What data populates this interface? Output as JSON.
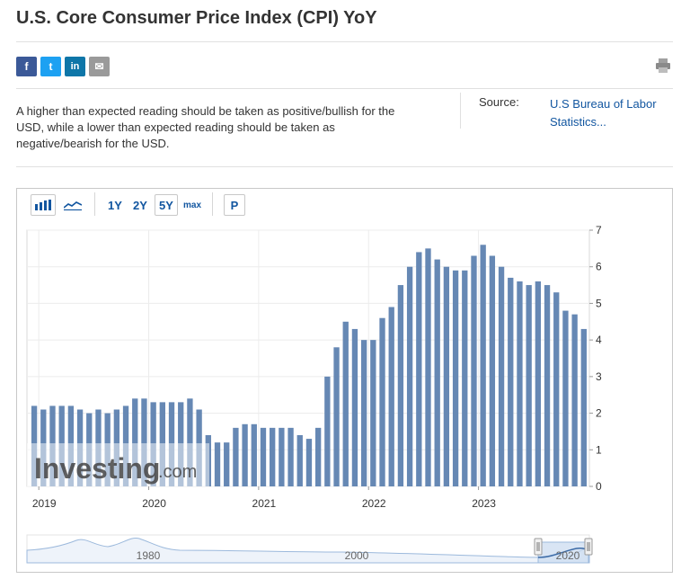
{
  "page": {
    "title": "U.S. Core Consumer Price Index (CPI) YoY",
    "description": "A higher than expected reading should be taken as positive/bullish for the USD, while a lower than expected reading should be taken as negative/bearish for the USD.",
    "source_label": "Source:",
    "source_link": "U.S Bureau of Labor Statistics..."
  },
  "share": {
    "facebook": "f",
    "twitter": "t",
    "linkedin": "in",
    "email": "✉",
    "icons": [
      "facebook-icon",
      "twitter-icon",
      "linkedin-icon",
      "email-icon",
      "printer-icon"
    ]
  },
  "toolbar": {
    "ranges": [
      "1Y",
      "2Y",
      "5Y",
      "max"
    ],
    "selected_range": "5Y",
    "p_label": "P",
    "icons": [
      "bar-chart-icon",
      "area-chart-icon"
    ]
  },
  "colors": {
    "bar": "#6688b4",
    "bar_shade": "#5b7fae",
    "link": "#1256a0",
    "watermark": "#444444",
    "navigator_line": "#9cb9dc",
    "navigator_fill": "#eef3fa"
  },
  "watermark": {
    "brand": "Investing",
    "suffix": ".com"
  },
  "chart_data": {
    "type": "bar",
    "title": "",
    "xlabel": "",
    "ylabel": "",
    "ylim": [
      0,
      7
    ],
    "yticks": [
      0,
      1,
      2,
      3,
      4,
      5,
      6,
      7
    ],
    "y_axis_position": "right",
    "grid": true,
    "x_tick_labels": [
      "2019",
      "2020",
      "2021",
      "2022",
      "2023"
    ],
    "x_tick_label_month_index": [
      1,
      13,
      25,
      37,
      49
    ],
    "start_month": "2018-11",
    "values": [
      2.2,
      2.1,
      2.2,
      2.2,
      2.2,
      2.1,
      2.0,
      2.1,
      2.0,
      2.1,
      2.2,
      2.4,
      2.4,
      2.3,
      2.3,
      2.3,
      2.3,
      2.4,
      2.1,
      1.4,
      1.2,
      1.2,
      1.6,
      1.7,
      1.7,
      1.6,
      1.6,
      1.6,
      1.6,
      1.4,
      1.3,
      1.6,
      3.0,
      3.8,
      4.5,
      4.3,
      4.0,
      4.0,
      4.6,
      4.9,
      5.5,
      6.0,
      6.4,
      6.5,
      6.2,
      6.0,
      5.9,
      5.9,
      6.3,
      6.6,
      6.3,
      6.0,
      5.7,
      5.6,
      5.5,
      5.6,
      5.5,
      5.3,
      4.8,
      4.7,
      4.3
    ],
    "navigator": {
      "labels": [
        "1980",
        "2000",
        "2020"
      ]
    }
  }
}
